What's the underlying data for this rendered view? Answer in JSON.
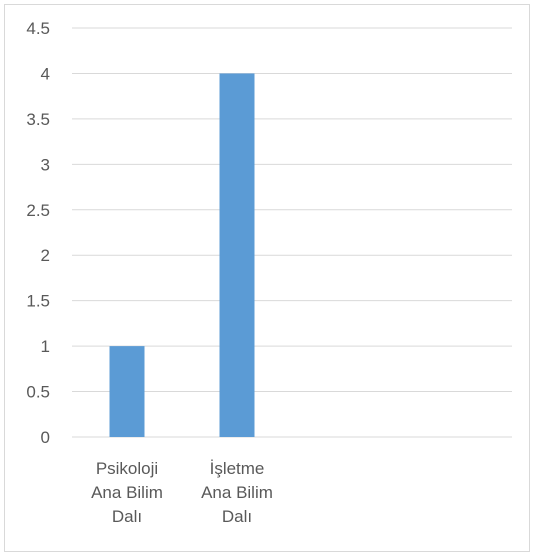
{
  "chart_data": {
    "type": "bar",
    "title": "",
    "xlabel": "",
    "ylabel": "",
    "categories": [
      [
        "Psikoloji",
        "Ana Bilim",
        "Dalı"
      ],
      [
        "İşletme",
        "Ana Bilim",
        "Dalı"
      ],
      [],
      []
    ],
    "values": [
      1,
      4,
      null,
      null
    ],
    "ylim": [
      0,
      4.5
    ],
    "yticks": [
      "0",
      "0.5",
      "1",
      "1.5",
      "2",
      "2.5",
      "3",
      "3.5",
      "4",
      "4.5"
    ],
    "grid": true,
    "legend": false,
    "bar_color": "#5b9bd5",
    "grid_color": "#d9d9d9",
    "text_color": "#595959"
  }
}
